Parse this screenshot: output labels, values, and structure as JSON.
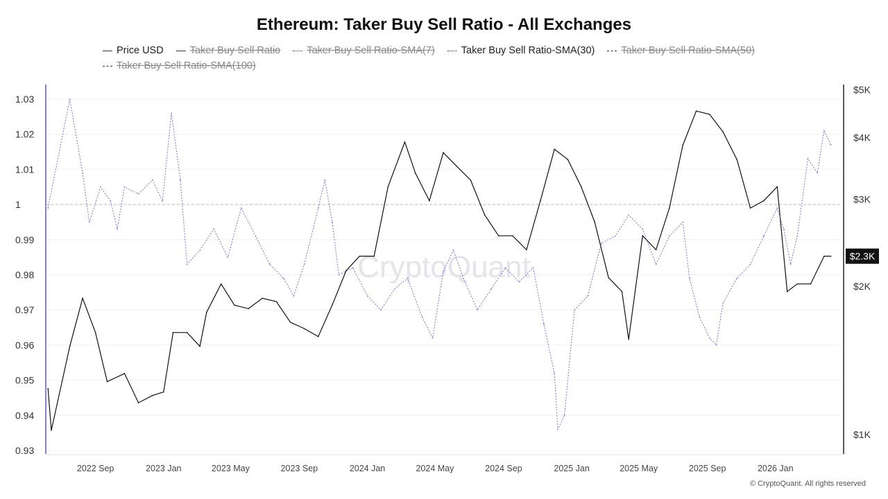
{
  "chart_data": {
    "type": "line",
    "title": "Ethereum: Taker Buy Sell Ratio - All Exchanges",
    "legend": [
      {
        "label": "Price USD",
        "style": "solid",
        "active": true
      },
      {
        "label": "Taker Buy Sell Ratio",
        "style": "solid",
        "active": false
      },
      {
        "label": "Taker Buy Sell Ratio-SMA(7)",
        "style": "dotted",
        "active": false
      },
      {
        "label": "Taker Buy Sell Ratio-SMA(30)",
        "style": "dotted",
        "active": true
      },
      {
        "label": "Taker Buy Sell Ratio-SMA(50)",
        "style": "dashed",
        "active": false
      },
      {
        "label": "Taker Buy Sell Ratio-SMA(100)",
        "style": "dashed",
        "active": false
      }
    ],
    "legend_placement": "top",
    "x_range": [
      "2022-06-04",
      "2026-04-28"
    ],
    "x_ticks": [
      {
        "date": "2022-09-01",
        "label": "2022 Sep"
      },
      {
        "date": "2023-01-01",
        "label": "2023 Jan"
      },
      {
        "date": "2023-05-01",
        "label": "2023 May"
      },
      {
        "date": "2023-09-01",
        "label": "2023 Sep"
      },
      {
        "date": "2024-01-01",
        "label": "2024 Jan"
      },
      {
        "date": "2024-05-01",
        "label": "2024 May"
      },
      {
        "date": "2024-09-01",
        "label": "2024 Sep"
      },
      {
        "date": "2025-01-01",
        "label": "2025 Jan"
      },
      {
        "date": "2025-05-01",
        "label": "2025 May"
      },
      {
        "date": "2025-09-01",
        "label": "2025 Sep"
      },
      {
        "date": "2026-01-01",
        "label": "2026 Jan"
      }
    ],
    "y_left": {
      "range": [
        0.93,
        1.03
      ],
      "ticks": [
        "1.03",
        "1.02",
        "1.01",
        "1",
        "0.99",
        "0.98",
        "0.97",
        "0.96",
        "0.95",
        "0.94",
        "0.93"
      ],
      "reference_line": 1
    },
    "y_right": {
      "scale": "log",
      "ticks": [
        {
          "value": 1000,
          "label": "$1K"
        },
        {
          "value": 2000,
          "label": "$2K"
        },
        {
          "value": 3000,
          "label": "$3K"
        },
        {
          "value": 4000,
          "label": "$4K"
        },
        {
          "value": 5000,
          "label": "$5K"
        }
      ],
      "current_value_label": "$2.3K",
      "current_value": 2300
    },
    "grid": true,
    "colors": {
      "price": "#111111",
      "sma30": "#7b6fd6",
      "left_axis": "#8a7fe0",
      "reference": "#bbbbbb"
    },
    "series": [
      {
        "name": "Price USD",
        "axis": "right",
        "points": [
          [
            "2022-06-08",
            1240
          ],
          [
            "2022-06-14",
            1020
          ],
          [
            "2022-07-17",
            1510
          ],
          [
            "2022-08-09",
            1890
          ],
          [
            "2022-09-01",
            1610
          ],
          [
            "2022-09-22",
            1280
          ],
          [
            "2022-10-23",
            1330
          ],
          [
            "2022-11-17",
            1160
          ],
          [
            "2022-12-12",
            1200
          ],
          [
            "2023-01-01",
            1220
          ],
          [
            "2023-01-18",
            1610
          ],
          [
            "2023-02-12",
            1610
          ],
          [
            "2023-03-07",
            1510
          ],
          [
            "2023-03-19",
            1770
          ],
          [
            "2023-04-14",
            2020
          ],
          [
            "2023-05-08",
            1830
          ],
          [
            "2023-06-02",
            1800
          ],
          [
            "2023-06-27",
            1890
          ],
          [
            "2023-07-22",
            1860
          ],
          [
            "2023-08-16",
            1690
          ],
          [
            "2023-09-10",
            1640
          ],
          [
            "2023-10-05",
            1580
          ],
          [
            "2023-10-30",
            1830
          ],
          [
            "2023-11-24",
            2150
          ],
          [
            "2023-12-18",
            2300
          ],
          [
            "2024-01-13",
            2300
          ],
          [
            "2024-02-07",
            3180
          ],
          [
            "2024-03-08",
            3920
          ],
          [
            "2024-03-27",
            3390
          ],
          [
            "2024-04-21",
            2980
          ],
          [
            "2024-05-16",
            3730
          ],
          [
            "2024-06-09",
            3500
          ],
          [
            "2024-07-04",
            3280
          ],
          [
            "2024-07-29",
            2790
          ],
          [
            "2024-08-23",
            2530
          ],
          [
            "2024-09-17",
            2530
          ],
          [
            "2024-10-12",
            2370
          ],
          [
            "2024-11-06",
            2980
          ],
          [
            "2024-12-01",
            3790
          ],
          [
            "2024-12-25",
            3610
          ],
          [
            "2025-01-18",
            3180
          ],
          [
            "2025-02-11",
            2700
          ],
          [
            "2025-03-08",
            2080
          ],
          [
            "2025-04-01",
            1950
          ],
          [
            "2025-04-13",
            1560
          ],
          [
            "2025-05-08",
            2530
          ],
          [
            "2025-06-01",
            2370
          ],
          [
            "2025-06-25",
            2880
          ],
          [
            "2025-07-19",
            3860
          ],
          [
            "2025-08-12",
            4530
          ],
          [
            "2025-09-05",
            4460
          ],
          [
            "2025-09-29",
            4110
          ],
          [
            "2025-10-24",
            3610
          ],
          [
            "2025-11-17",
            2880
          ],
          [
            "2025-12-11",
            2980
          ],
          [
            "2026-01-04",
            3180
          ],
          [
            "2026-01-22",
            1950
          ],
          [
            "2026-02-09",
            2020
          ],
          [
            "2026-03-05",
            2020
          ],
          [
            "2026-03-29",
            2300
          ],
          [
            "2026-04-10",
            2300
          ]
        ]
      },
      {
        "name": "Taker Buy Sell Ratio-SMA(30)",
        "axis": "left",
        "points": [
          [
            "2022-06-08",
            0.999
          ],
          [
            "2022-07-17",
            1.03
          ],
          [
            "2022-08-09",
            1.009
          ],
          [
            "2022-08-21",
            0.995
          ],
          [
            "2022-09-10",
            1.005
          ],
          [
            "2022-09-28",
            1.001
          ],
          [
            "2022-10-10",
            0.993
          ],
          [
            "2022-10-23",
            1.005
          ],
          [
            "2022-11-17",
            1.003
          ],
          [
            "2022-12-12",
            1.007
          ],
          [
            "2022-12-30",
            1.001
          ],
          [
            "2023-01-15",
            1.026
          ],
          [
            "2023-01-31",
            1.007
          ],
          [
            "2023-02-12",
            0.983
          ],
          [
            "2023-03-07",
            0.987
          ],
          [
            "2023-04-01",
            0.993
          ],
          [
            "2023-04-26",
            0.985
          ],
          [
            "2023-05-20",
            0.999
          ],
          [
            "2023-06-15",
            0.991
          ],
          [
            "2023-07-10",
            0.983
          ],
          [
            "2023-08-04",
            0.979
          ],
          [
            "2023-08-22",
            0.974
          ],
          [
            "2023-09-10",
            0.983
          ],
          [
            "2023-10-05",
            0.999
          ],
          [
            "2023-10-17",
            1.007
          ],
          [
            "2023-10-30",
            0.995
          ],
          [
            "2023-11-11",
            0.98
          ],
          [
            "2023-12-06",
            0.982
          ],
          [
            "2024-01-01",
            0.974
          ],
          [
            "2024-01-25",
            0.97
          ],
          [
            "2024-02-19",
            0.976
          ],
          [
            "2024-03-13",
            0.979
          ],
          [
            "2024-04-08",
            0.968
          ],
          [
            "2024-04-27",
            0.962
          ],
          [
            "2024-05-16",
            0.981
          ],
          [
            "2024-06-03",
            0.987
          ],
          [
            "2024-06-21",
            0.979
          ],
          [
            "2024-07-16",
            0.97
          ],
          [
            "2024-08-10",
            0.976
          ],
          [
            "2024-09-04",
            0.982
          ],
          [
            "2024-09-29",
            0.978
          ],
          [
            "2024-10-24",
            0.982
          ],
          [
            "2024-11-12",
            0.966
          ],
          [
            "2024-12-01",
            0.952
          ],
          [
            "2024-12-07",
            0.936
          ],
          [
            "2024-12-19",
            0.94
          ],
          [
            "2025-01-06",
            0.97
          ],
          [
            "2025-01-30",
            0.974
          ],
          [
            "2025-02-23",
            0.989
          ],
          [
            "2025-03-20",
            0.991
          ],
          [
            "2025-04-13",
            0.997
          ],
          [
            "2025-05-08",
            0.993
          ],
          [
            "2025-06-01",
            0.983
          ],
          [
            "2025-06-25",
            0.991
          ],
          [
            "2025-07-19",
            0.995
          ],
          [
            "2025-07-31",
            0.979
          ],
          [
            "2025-08-18",
            0.968
          ],
          [
            "2025-09-05",
            0.962
          ],
          [
            "2025-09-17",
            0.96
          ],
          [
            "2025-09-29",
            0.972
          ],
          [
            "2025-10-24",
            0.979
          ],
          [
            "2025-11-17",
            0.983
          ],
          [
            "2025-12-11",
            0.991
          ],
          [
            "2026-01-04",
            0.999
          ],
          [
            "2026-01-16",
            0.993
          ],
          [
            "2026-01-28",
            0.983
          ],
          [
            "2026-02-09",
            0.991
          ],
          [
            "2026-02-28",
            1.013
          ],
          [
            "2026-03-17",
            1.009
          ],
          [
            "2026-03-29",
            1.021
          ],
          [
            "2026-04-10",
            1.017
          ]
        ]
      }
    ]
  },
  "watermark": "CryptoQuant",
  "copyright": "© CryptoQuant. All rights reserved"
}
